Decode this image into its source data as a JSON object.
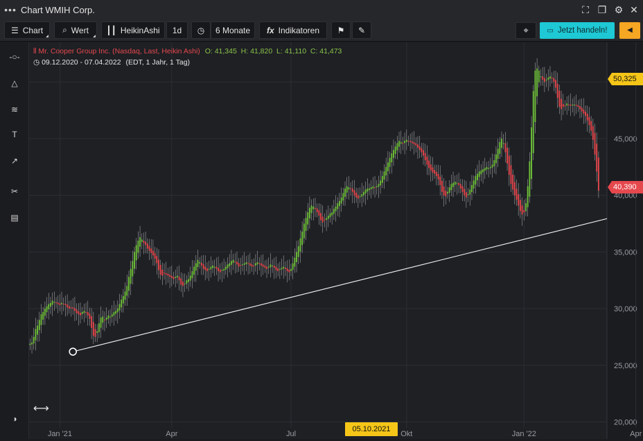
{
  "window": {
    "title": "Chart WMIH Corp.",
    "controls": [
      "expand-icon",
      "restore-icon",
      "gear-icon",
      "close-icon"
    ]
  },
  "toolbar": {
    "chart_label": "Chart",
    "value_label": "Wert",
    "heikin_label": "HeikinAshi",
    "interval_label": "1d",
    "period_label": "6 Monate",
    "indicators_label": "Indikatoren",
    "trade_label": "Jetzt handeln!"
  },
  "legend": {
    "series": "Mr. Cooper Group Inc. (Nasdaq, Last, Heikin Ashi)",
    "ohlc": "O: 41,345  H: 41,820  L: 41,110  C: 41,473",
    "range": "09.12.2020 - 07.04.2022",
    "range_detail": "(EDT, 1 Jahr, 1 Tag)"
  },
  "price_labels": {
    "high_marker": "50,325",
    "last_marker": "40,390",
    "crosshair_date": "05.10.2021"
  },
  "colors": {
    "up": "#6fbf3a",
    "down": "#e5484d",
    "accent_trade": "#1ec8d4",
    "marker_yellow": "#f5c518",
    "marker_red": "#e5484d"
  },
  "chart_data": {
    "type": "line",
    "title": "",
    "ylim": [
      18500,
      53500
    ],
    "y_ticks": [
      "50,000",
      "45,000",
      "40,000",
      "35,000",
      "30,000",
      "25,000",
      "20,000"
    ],
    "y_tick_values": [
      50000,
      45000,
      40000,
      35000,
      30000,
      25000,
      20000
    ],
    "x_ticks": [
      "Jan '21",
      "Apr",
      "Jul",
      "Okt",
      "Jan '22",
      "Apr"
    ],
    "x_tick_index": [
      16,
      76,
      140,
      202,
      265,
      325
    ],
    "grid": true,
    "series": [
      {
        "name": "Mr. Cooper Group Inc. (Nasdaq, Last, Heikin Ashi)",
        "style": "heikin-ashi",
        "closes": [
          26900,
          27000,
          27500,
          28200,
          28500,
          29000,
          29500,
          29700,
          30000,
          30200,
          30400,
          30500,
          30700,
          30600,
          30500,
          30400,
          30300,
          30500,
          30400,
          30300,
          30100,
          30000,
          30100,
          30000,
          29800,
          29600,
          29500,
          29400,
          29700,
          29800,
          29700,
          29400,
          29100,
          28300,
          27600,
          27500,
          28000,
          28700,
          29200,
          29300,
          29000,
          29200,
          29400,
          29300,
          29500,
          29700,
          29800,
          30000,
          30400,
          30800,
          31100,
          31500,
          32000,
          32800,
          33500,
          34200,
          35000,
          35600,
          36000,
          36300,
          36100,
          35800,
          35600,
          35300,
          35100,
          34900,
          34700,
          34400,
          34000,
          33400,
          33000,
          32900,
          33100,
          33000,
          32900,
          32800,
          32700,
          32600,
          32800,
          32900,
          32500,
          32100,
          32000,
          32200,
          32500,
          32600,
          32900,
          33300,
          33700,
          34000,
          34300,
          34100,
          33800,
          33500,
          33400,
          33300,
          33500,
          33700,
          33800,
          33700,
          33500,
          33300,
          33200,
          33400,
          33500,
          33700,
          33900,
          34000,
          34200,
          34300,
          34100,
          33900,
          33700,
          33800,
          33900,
          34000,
          34100,
          34000,
          33800,
          33700,
          33800,
          34000,
          34100,
          34000,
          33800,
          33700,
          33600,
          33500,
          33700,
          33900,
          33800,
          33600,
          33400,
          33300,
          33500,
          33600,
          33700,
          33500,
          33300,
          33200,
          33500,
          34000,
          34500,
          35000,
          35500,
          36200,
          36800,
          37500,
          38000,
          38500,
          38900,
          39100,
          39000,
          38800,
          38500,
          38200,
          37800,
          37600,
          37800,
          38000,
          38200,
          38400,
          38500,
          38800,
          39000,
          39300,
          39500,
          39800,
          40200,
          40600,
          40800,
          40700,
          40600,
          40300,
          40000,
          39800,
          39700,
          39900,
          40100,
          40300,
          40500,
          40600,
          40600,
          40700,
          40800,
          40700,
          40800,
          41000,
          41300,
          41700,
          42100,
          42500,
          42900,
          43300,
          43700,
          44000,
          44300,
          44600,
          44800,
          44700,
          44600,
          44800,
          44900,
          44800,
          44700,
          44600,
          44500,
          44400,
          44200,
          44000,
          43800,
          43500,
          43100,
          42700,
          42400,
          42200,
          42000,
          41900,
          41700,
          41400,
          40900,
          40300,
          40000,
          39900,
          40300,
          40700,
          41000,
          41100,
          41200,
          41100,
          40900,
          40600,
          40300,
          40000,
          39800,
          40100,
          40500,
          40900,
          41300,
          41700,
          41900,
          42100,
          42200,
          42300,
          42400,
          42500,
          42400,
          42500,
          42700,
          43100,
          43600,
          44100,
          44700,
          45000,
          44600,
          43800,
          42800,
          41800,
          41000,
          40500,
          40000,
          39600,
          39100,
          38600,
          38300,
          38500,
          39300,
          40800,
          43000,
          46000,
          49200,
          51000,
          51200,
          51000,
          50500,
          50200,
          50000,
          50200,
          50400,
          50500,
          50300,
          50000,
          49500,
          48600,
          47800,
          47600,
          47800,
          47900,
          48100,
          48000,
          47900,
          48000,
          48000,
          47900,
          47800,
          47600,
          47400,
          47200,
          47000,
          46600,
          46200,
          45700,
          44900,
          43600,
          42100,
          40400
        ]
      }
    ],
    "trendline": {
      "start_index": 23,
      "start_value": 26200,
      "end_index": 333,
      "end_value": 38900
    }
  }
}
